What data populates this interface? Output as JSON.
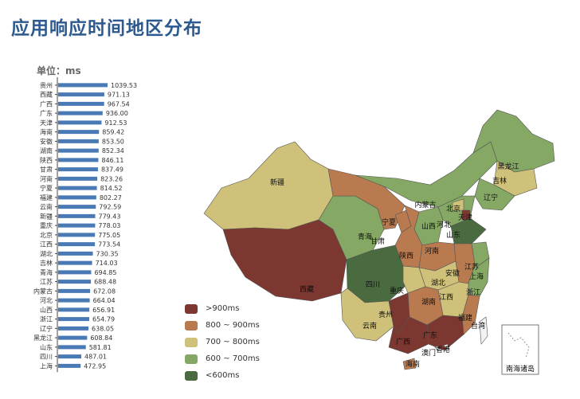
{
  "title": "应用响应时间地区分布",
  "unit_label": "单位：ms",
  "chart_data": {
    "type": "bar",
    "orientation": "horizontal",
    "unit": "ms",
    "categories": [
      "贵州",
      "西藏",
      "广西",
      "广东",
      "天津",
      "海南",
      "安徽",
      "湖南",
      "陕西",
      "甘肃",
      "河南",
      "宁夏",
      "福建",
      "云南",
      "新疆",
      "重庆",
      "北京",
      "江西",
      "湖北",
      "吉林",
      "青海",
      "江苏",
      "内蒙古",
      "河北",
      "山西",
      "浙江",
      "辽宁",
      "黑龙江",
      "山东",
      "四川",
      "上海"
    ],
    "values": [
      1039.53,
      971.13,
      967.54,
      936.0,
      912.53,
      859.42,
      853.5,
      852.34,
      846.11,
      837.49,
      823.26,
      814.52,
      802.27,
      792.59,
      779.43,
      778.03,
      775.05,
      773.54,
      730.35,
      714.03,
      694.85,
      688.48,
      672.08,
      664.04,
      656.91,
      654.79,
      638.05,
      608.84,
      581.81,
      487.01,
      472.95
    ],
    "value_labels": [
      "1039.53",
      "971.13",
      "967.54",
      "936.00",
      "912.53",
      "859.42",
      "853.50",
      "852.34",
      "846.11",
      "837.49",
      "823.26",
      "814.52",
      "802.27",
      "792.59",
      "779.43",
      "778.03",
      "775.05",
      "773.54",
      "730.35",
      "714.03",
      "694.85",
      "688.48",
      "672.08",
      "664.04",
      "656.91",
      "654.79",
      "638.05",
      "608.84",
      "581.81",
      "487.01",
      "472.95"
    ],
    "bar_color": "#4a7ab5"
  },
  "map": {
    "type": "choropleth",
    "regions": [
      {
        "name": "新疆",
        "level": 3
      },
      {
        "name": "西藏",
        "level": 5
      },
      {
        "name": "青海",
        "level": 2
      },
      {
        "name": "甘肃",
        "level": 4
      },
      {
        "name": "宁夏",
        "level": 4
      },
      {
        "name": "内蒙古",
        "level": 2
      },
      {
        "name": "黑龙江",
        "level": 2
      },
      {
        "name": "吉林",
        "level": 3
      },
      {
        "name": "辽宁",
        "level": 2
      },
      {
        "name": "河北",
        "level": 2
      },
      {
        "name": "北京",
        "level": 3
      },
      {
        "name": "天津",
        "level": 5
      },
      {
        "name": "山西",
        "level": 2
      },
      {
        "name": "山东",
        "level": 1
      },
      {
        "name": "陕西",
        "level": 4
      },
      {
        "name": "河南",
        "level": 4
      },
      {
        "name": "四川",
        "level": 1
      },
      {
        "name": "重庆",
        "level": 3
      },
      {
        "name": "湖北",
        "level": 3
      },
      {
        "name": "安徽",
        "level": 4
      },
      {
        "name": "江苏",
        "level": 2
      },
      {
        "name": "上海",
        "level": 1
      },
      {
        "name": "浙江",
        "level": 2
      },
      {
        "name": "江西",
        "level": 3
      },
      {
        "name": "湖南",
        "level": 4
      },
      {
        "name": "福建",
        "level": 4
      },
      {
        "name": "云南",
        "level": 3
      },
      {
        "name": "贵州",
        "level": 5
      },
      {
        "name": "广西",
        "level": 5
      },
      {
        "name": "广东",
        "level": 5
      },
      {
        "name": "海南",
        "level": 4
      },
      {
        "name": "台湾",
        "level": 0
      },
      {
        "name": "香港",
        "level": 0
      },
      {
        "name": "澳门",
        "level": 0
      }
    ],
    "inset_label": "南海诸岛"
  },
  "legend": [
    {
      "label": ">900ms",
      "level": 5,
      "color": "#7b3730"
    },
    {
      "label": "800 ~ 900ms",
      "level": 4,
      "color": "#b97a4f"
    },
    {
      "label": "700 ~ 800ms",
      "level": 3,
      "color": "#cfc17a"
    },
    {
      "label": "600 ~ 700ms",
      "level": 2,
      "color": "#86a865"
    },
    {
      "label": "<600ms",
      "level": 1,
      "color": "#4a6b40"
    }
  ],
  "neutral_color": "#f2f2f2"
}
